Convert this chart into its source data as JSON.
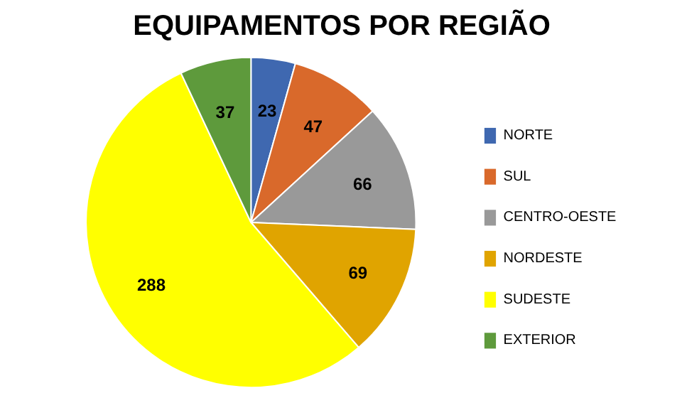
{
  "chart_data": {
    "type": "pie",
    "title": "EQUIPAMENTOS POR REGIÃO",
    "categories": [
      "NORTE",
      "SUL",
      "CENTRO-OESTE",
      "NORDESTE",
      "SUDESTE",
      "EXTERIOR"
    ],
    "values": [
      23,
      47,
      66,
      69,
      288,
      37
    ],
    "colors": [
      "#3f68b0",
      "#d9692b",
      "#999999",
      "#e0a400",
      "#ffff00",
      "#5e9a3c"
    ],
    "data_labels": true,
    "legend": "right"
  }
}
